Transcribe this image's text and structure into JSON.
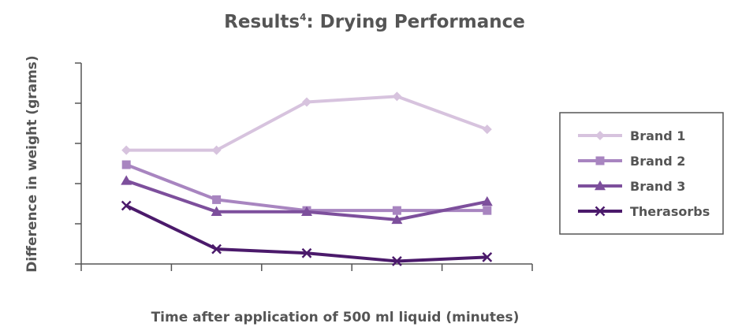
{
  "chart_data": {
    "type": "line",
    "title": "Results",
    "title_superscript": "4",
    "title_suffix": ": Drying Performance",
    "xlabel": "Time after application of 500 ml liquid (minutes)",
    "ylabel": "Difference in weight (grams)",
    "x_point_count": 5,
    "ylim": [
      0,
      5
    ],
    "y_ticks": [
      0,
      1,
      2,
      3,
      4,
      5
    ],
    "grid": false,
    "legend_position": "right",
    "series": [
      {
        "name": "Brand 1",
        "values": [
          2.83,
          2.83,
          4.03,
          4.17,
          3.35
        ],
        "color": "#d7c3de",
        "marker": "diamond"
      },
      {
        "name": "Brand 2",
        "values": [
          2.47,
          1.6,
          1.33,
          1.33,
          1.33
        ],
        "color": "#a885c0",
        "marker": "square"
      },
      {
        "name": "Brand 3",
        "values": [
          2.07,
          1.3,
          1.3,
          1.1,
          1.55
        ],
        "color": "#7d4f9c",
        "marker": "triangle"
      },
      {
        "name": "Therasorbs",
        "values": [
          1.45,
          0.37,
          0.27,
          0.07,
          0.17
        ],
        "color": "#4b1a6b",
        "marker": "x"
      }
    ]
  }
}
